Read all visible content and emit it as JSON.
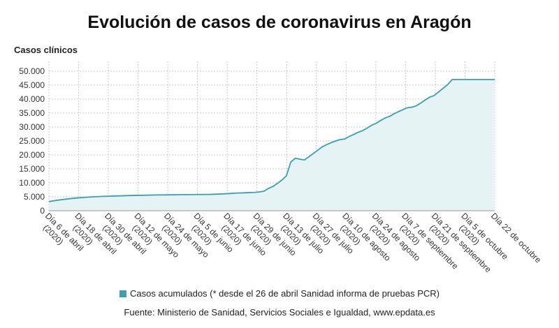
{
  "chart_data": {
    "type": "area",
    "title": "Evolución de casos de coronavirus en Aragón",
    "ylabel": "Casos clínicos",
    "ylim": [
      0,
      50000
    ],
    "yticks": [
      0,
      5000,
      10000,
      15000,
      20000,
      25000,
      30000,
      35000,
      40000,
      45000,
      50000
    ],
    "ytick_labels": [
      "0",
      "5.000",
      "10.000",
      "15.000",
      "20.000",
      "25.000",
      "30.000",
      "35.000",
      "40.000",
      "45.000",
      "50.000"
    ],
    "grid": true,
    "legend_position": "bottom",
    "colors": {
      "line": "#3a9fae",
      "fill": "#e6f3f5",
      "grid": "#c8c8c8"
    },
    "categories": [
      "Día 6 de abril (2020)",
      "Día 18 de abril (2020)",
      "Día 30 de abril (2020)",
      "Día 12 de mayo (2020)",
      "Día 24 de mayo (2020)",
      "Día 5 de junio (2020)",
      "Día 17 de junio (2020)",
      "Día 29 de junio (2020)",
      "Día 13 de julio (2020)",
      "Día 27 de julio (2020)",
      "Día 10 de agosto (2020)",
      "Día 24 de agosto (2020)",
      "Día 7 de septiembre (2020)",
      "Día 21 de septiembre (2020)",
      "Día 5 de octubre (2020)",
      "Día 22 de octubre"
    ],
    "series": [
      {
        "name": "Casos acumulados (* desde el 26 de abril Sanidad informa de pruebas PCR)",
        "x": [
          0,
          4,
          8,
          12,
          16,
          20,
          24,
          30,
          36,
          42,
          48,
          54,
          60,
          66,
          72,
          78,
          84,
          88,
          92,
          94,
          96,
          98,
          100,
          102,
          104,
          106,
          108,
          110,
          112,
          114,
          116,
          118,
          120,
          122,
          124,
          126,
          128,
          130,
          132,
          134,
          136,
          138,
          140,
          142,
          144,
          146,
          148,
          150,
          152,
          154,
          156,
          158,
          160,
          162,
          164,
          166,
          168,
          170,
          172,
          174,
          176,
          178,
          180,
          182,
          184,
          186,
          189,
          191,
          193,
          195,
          197,
          199
        ],
        "values": [
          3300,
          3800,
          4200,
          4550,
          4800,
          5000,
          5150,
          5300,
          5450,
          5550,
          5650,
          5700,
          5780,
          5820,
          5860,
          6050,
          6350,
          6450,
          6600,
          6750,
          7000,
          8000,
          8700,
          9800,
          11000,
          12500,
          17500,
          18800,
          18500,
          18200,
          19300,
          20500,
          21700,
          22900,
          23700,
          24400,
          25000,
          25500,
          25700,
          26600,
          27300,
          28100,
          28700,
          29600,
          30600,
          31300,
          32300,
          33200,
          33800,
          34700,
          35500,
          36200,
          36900,
          37100,
          37600,
          38600,
          39700,
          40700,
          41300,
          42600,
          43900,
          45200,
          47000,
          47000,
          47000,
          47000,
          47000,
          47000,
          47000,
          47000,
          47000,
          47000
        ]
      }
    ]
  },
  "legend": {
    "label": "Casos acumulados (* desde el 26 de abril Sanidad informa de pruebas PCR)"
  },
  "source": "Fuente: Ministerio de Sanidad, Servicios Sociales e Igualdad, www.epdata.es"
}
